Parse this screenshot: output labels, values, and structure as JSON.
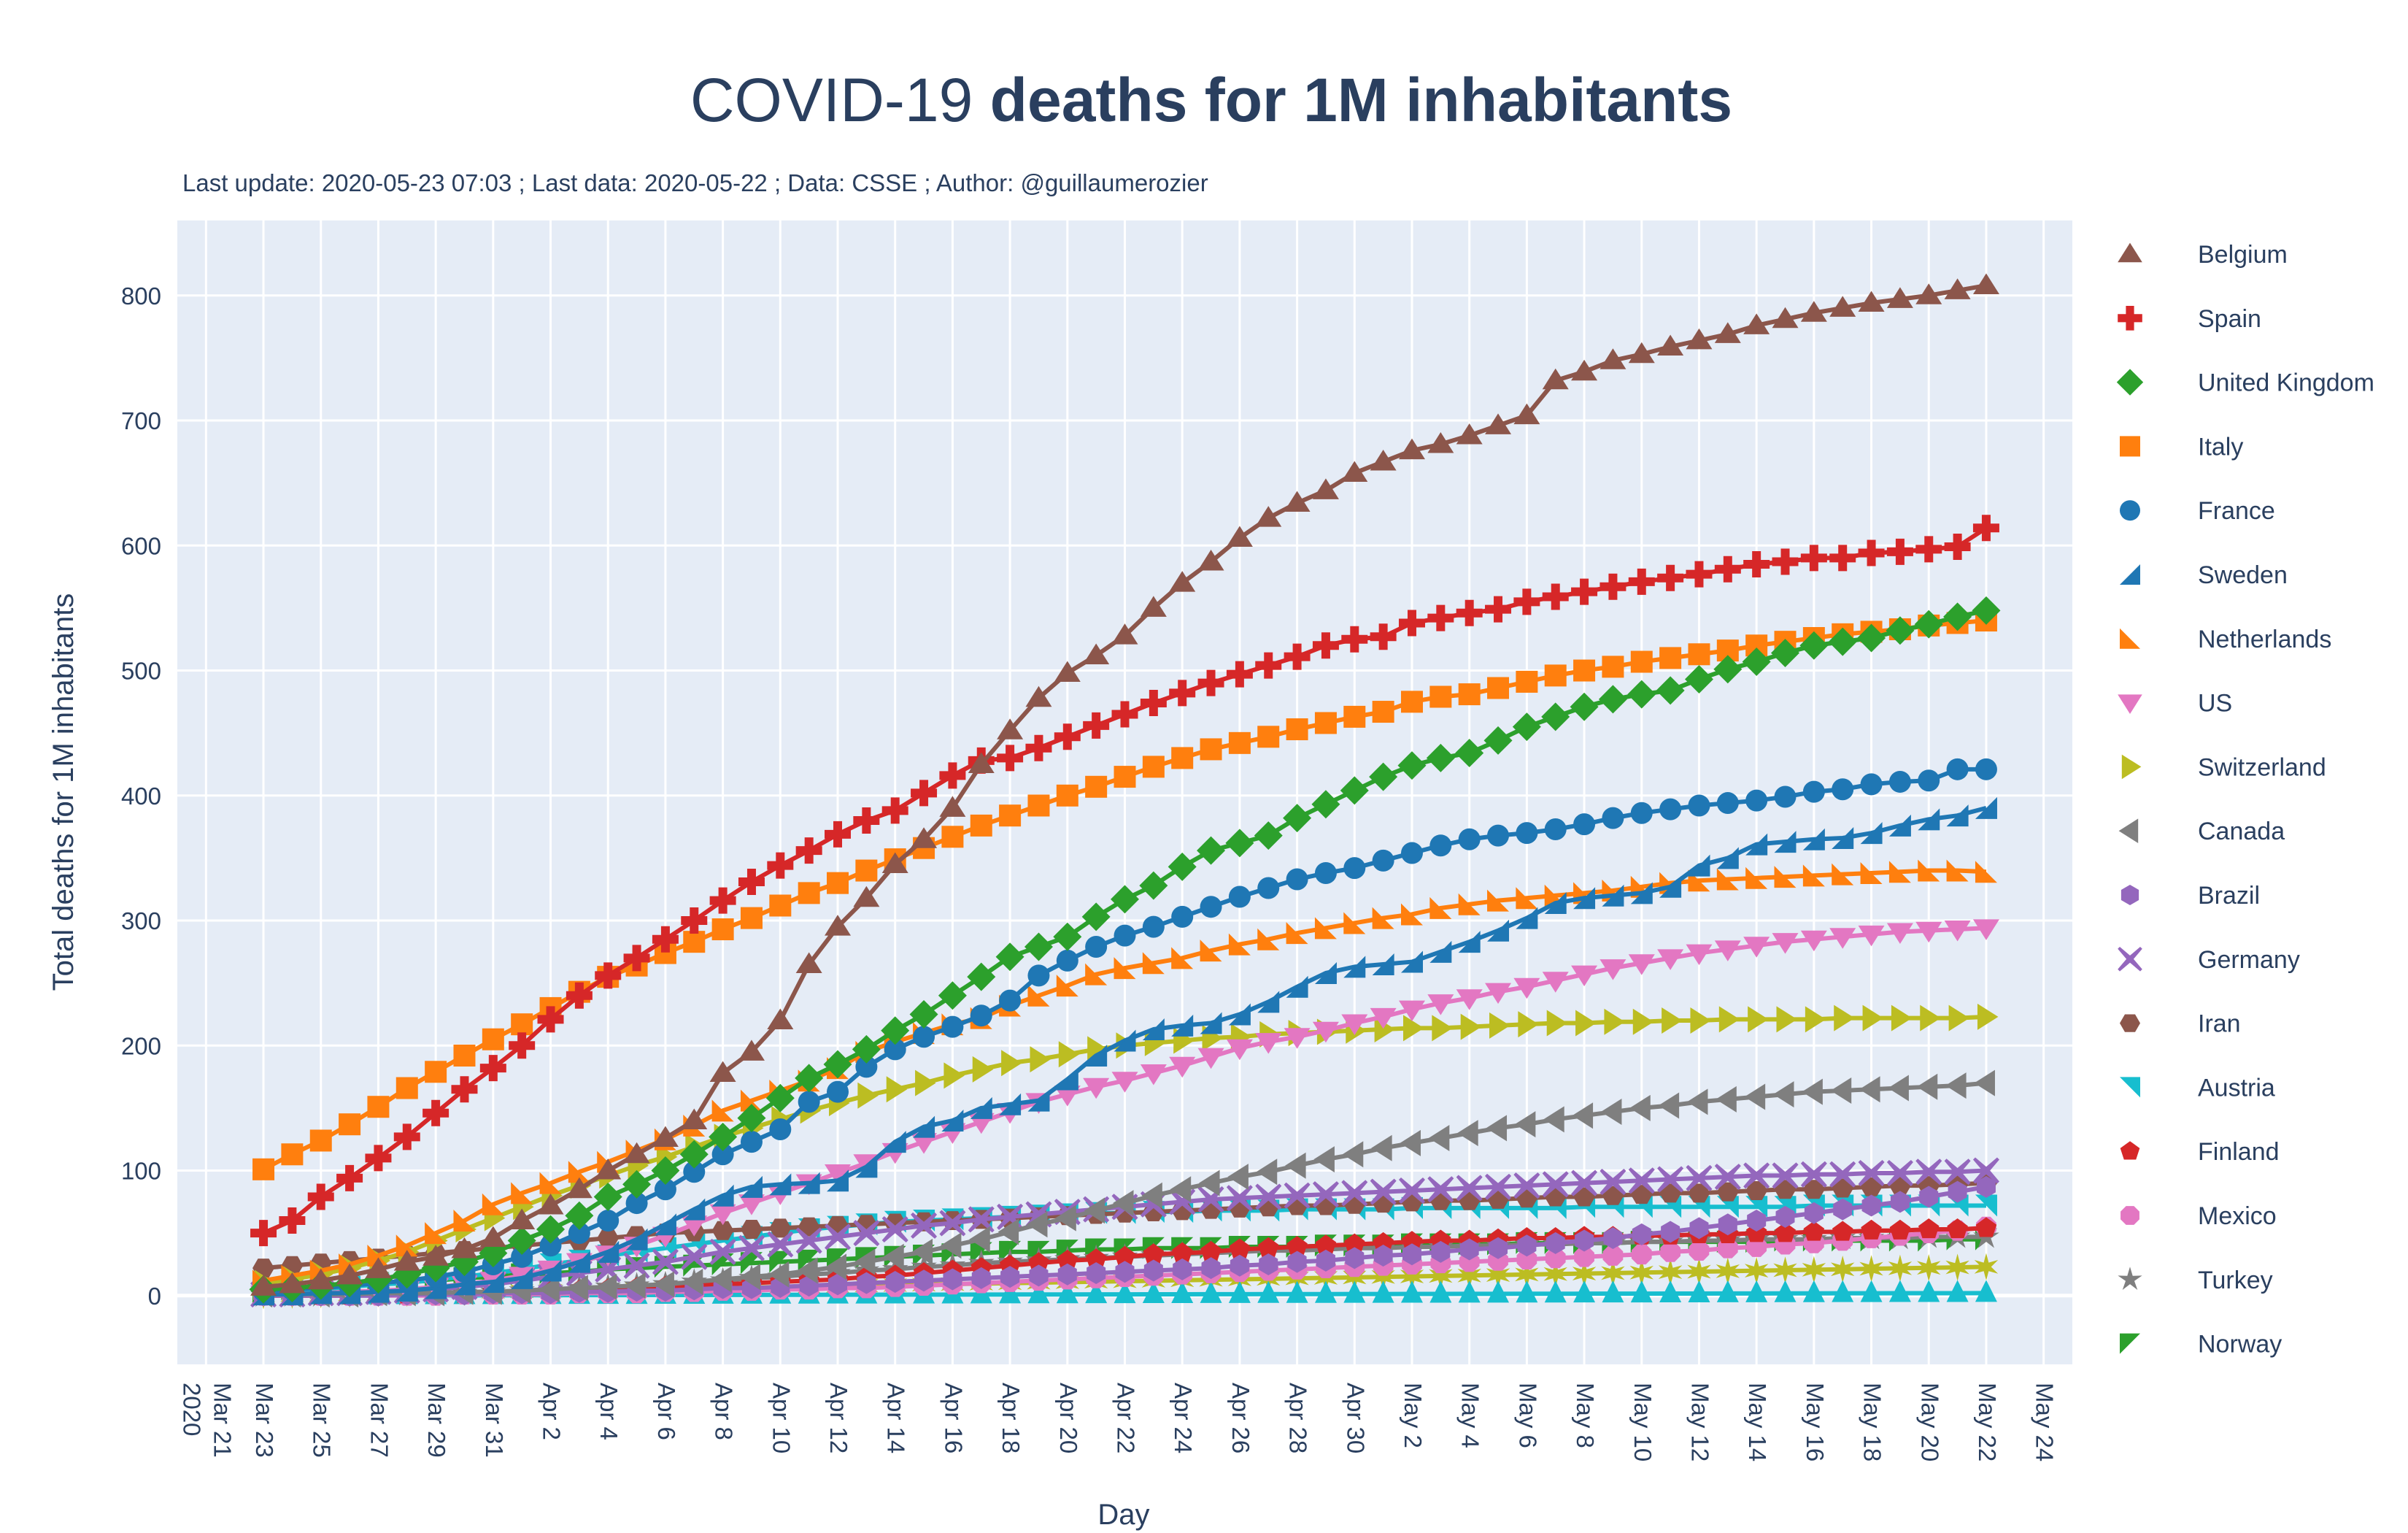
{
  "chart_data": {
    "type": "line",
    "title_regular": "COVID-19 ",
    "title_bold": "deaths for 1M inhabitants",
    "subtitle": "Last update: 2020-05-23 07:03 ; Last data: 2020-05-22 ; Data: CSSE ; Author: @guillaumerozier",
    "xlabel": "Day",
    "ylabel": "Total deaths  for 1M inhabitants",
    "x_start": "2020-03-23",
    "x_end": "2020-05-22",
    "x_step_days": 1,
    "xlim": [
      "2020-03-20",
      "2020-05-25"
    ],
    "ylim": [
      -55,
      860
    ],
    "yticks": [
      0,
      100,
      200,
      300,
      400,
      500,
      600,
      700,
      800
    ],
    "xtick_labels": [
      "Mar 21\n2020",
      "Mar 23",
      "Mar 25",
      "Mar 27",
      "Mar 29",
      "Mar 31",
      "Apr 2",
      "Apr 4",
      "Apr 6",
      "Apr 8",
      "Apr 10",
      "Apr 12",
      "Apr 14",
      "Apr 16",
      "Apr 18",
      "Apr 20",
      "Apr 22",
      "Apr 24",
      "Apr 26",
      "Apr 28",
      "Apr 30",
      "May 2",
      "May 4",
      "May 6",
      "May 8",
      "May 10",
      "May 12",
      "May 14",
      "May 16",
      "May 18",
      "May 20",
      "May 22",
      "May 24"
    ],
    "grid": true,
    "legend_position": "right",
    "background": "#e5ecf6",
    "series": [
      {
        "name": "Belgium",
        "color": "#8c564b",
        "marker": "triangle-up",
        "values": [
          7,
          9,
          12,
          16,
          21,
          27,
          31,
          37,
          46,
          60,
          72,
          85,
          100,
          113,
          126,
          140,
          178,
          195,
          220,
          265,
          295,
          318,
          345,
          365,
          390,
          425,
          452,
          478,
          498,
          512,
          528,
          550,
          570,
          587,
          606,
          622,
          634,
          644,
          658,
          667,
          676,
          681,
          688,
          696,
          704,
          732,
          739,
          748,
          753,
          759,
          764,
          769,
          776,
          781,
          786,
          790,
          794,
          797,
          800,
          804,
          808
        ]
      },
      {
        "name": "Spain",
        "color": "#d62728",
        "marker": "cross",
        "values": [
          50,
          60,
          79,
          94,
          110,
          127,
          146,
          165,
          182,
          200,
          221,
          240,
          256,
          270,
          285,
          300,
          316,
          331,
          344,
          356,
          369,
          380,
          388,
          402,
          416,
          428,
          430,
          438,
          447,
          456,
          465,
          474,
          482,
          490,
          497,
          504,
          511,
          520,
          525,
          527,
          538,
          542,
          546,
          549,
          555,
          559,
          563,
          567,
          571,
          574,
          577,
          581,
          585,
          587,
          590,
          590,
          594,
          595,
          597,
          599,
          614
        ]
      },
      {
        "name": "United Kingdom",
        "color": "#2ca02c",
        "marker": "diamond",
        "values": [
          5,
          6,
          8,
          10,
          13,
          17,
          22,
          27,
          34,
          44,
          53,
          64,
          79,
          89,
          100,
          113,
          127,
          142,
          158,
          174,
          185,
          197,
          212,
          225,
          240,
          255,
          271,
          279,
          287,
          303,
          317,
          328,
          343,
          356,
          362,
          368,
          382,
          393,
          404,
          415,
          424,
          430,
          434,
          444,
          455,
          463,
          471,
          477,
          481,
          484,
          493,
          501,
          507,
          514,
          520,
          523,
          526,
          532,
          537,
          543,
          548
        ]
      },
      {
        "name": "Italy",
        "color": "#ff7f0e",
        "marker": "square",
        "values": [
          101,
          113,
          124,
          137,
          151,
          166,
          179,
          192,
          205,
          217,
          230,
          243,
          255,
          264,
          274,
          283,
          293,
          302,
          312,
          322,
          330,
          340,
          349,
          358,
          367,
          376,
          384,
          392,
          400,
          407,
          415,
          423,
          430,
          437,
          442,
          447,
          453,
          458,
          463,
          467,
          475,
          479,
          481,
          486,
          491,
          496,
          500,
          503,
          507,
          510,
          513,
          516,
          520,
          523,
          526,
          529,
          531,
          533,
          536,
          538,
          540
        ]
      },
      {
        "name": "France",
        "color": "#1f77b4",
        "marker": "circle",
        "values": [
          4,
          5,
          6,
          8,
          10,
          12,
          15,
          19,
          25,
          31,
          40,
          50,
          60,
          74,
          85,
          99,
          113,
          123,
          133,
          155,
          163,
          183,
          197,
          207,
          215,
          224,
          236,
          256,
          268,
          279,
          288,
          295,
          303,
          311,
          319,
          326,
          333,
          338,
          342,
          348,
          354,
          360,
          365,
          368,
          370,
          373,
          377,
          382,
          386,
          389,
          392,
          394,
          396,
          399,
          403,
          405,
          409,
          411,
          412,
          421,
          421
        ]
      },
      {
        "name": "Sweden",
        "color": "#1f77b4",
        "marker": "triangle-ne",
        "values": [
          1,
          1,
          2,
          2,
          3,
          4,
          6,
          9,
          11,
          14,
          20,
          27,
          35,
          45,
          57,
          69,
          80,
          87,
          89,
          90,
          92,
          103,
          123,
          135,
          140,
          150,
          153,
          156,
          173,
          192,
          204,
          213,
          216,
          218,
          225,
          235,
          247,
          258,
          263,
          265,
          267,
          275,
          283,
          292,
          302,
          314,
          318,
          320,
          322,
          327,
          344,
          350,
          361,
          363,
          365,
          366,
          370,
          376,
          381,
          384,
          390
        ]
      },
      {
        "name": "Netherlands",
        "color": "#ff7f0e",
        "marker": "triangle-se",
        "values": [
          12,
          16,
          20,
          25,
          32,
          40,
          50,
          60,
          73,
          82,
          90,
          99,
          107,
          116,
          125,
          136,
          148,
          156,
          164,
          172,
          182,
          195,
          203,
          210,
          217,
          222,
          232,
          240,
          248,
          257,
          262,
          266,
          270,
          276,
          281,
          285,
          290,
          294,
          298,
          302,
          305,
          310,
          313,
          316,
          318,
          320,
          322,
          324,
          327,
          330,
          332,
          333,
          334,
          335,
          336,
          337,
          338,
          339,
          340,
          340,
          339
        ]
      },
      {
        "name": "US",
        "color": "#e377c2",
        "marker": "triangle-down",
        "values": [
          1,
          1,
          2,
          3,
          4,
          5,
          7,
          9,
          12,
          16,
          21,
          27,
          33,
          40,
          48,
          57,
          66,
          74,
          82,
          90,
          98,
          106,
          115,
          123,
          131,
          139,
          147,
          155,
          161,
          167,
          172,
          178,
          184,
          191,
          198,
          203,
          207,
          212,
          218,
          223,
          229,
          234,
          238,
          243,
          247,
          252,
          257,
          262,
          266,
          270,
          274,
          277,
          280,
          283,
          285,
          287,
          289,
          291,
          292,
          293,
          294
        ]
      },
      {
        "name": "Switzerland",
        "color": "#bcbd22",
        "marker": "triangle-right",
        "values": [
          10,
          13,
          17,
          22,
          28,
          35,
          44,
          53,
          62,
          71,
          80,
          88,
          96,
          104,
          111,
          119,
          127,
          134,
          141,
          148,
          154,
          160,
          165,
          170,
          176,
          181,
          186,
          189,
          193,
          197,
          200,
          202,
          204,
          206,
          207,
          209,
          210,
          211,
          212,
          213,
          214,
          214,
          215,
          216,
          217,
          218,
          218,
          219,
          219,
          220,
          220,
          221,
          221,
          221,
          221,
          222,
          222,
          222,
          222,
          222,
          223
        ]
      },
      {
        "name": "Canada",
        "color": "#7f7f7f",
        "marker": "triangle-left",
        "values": [
          1,
          1,
          1,
          1,
          2,
          2,
          2,
          3,
          3,
          4,
          5,
          6,
          7,
          8,
          9,
          11,
          13,
          15,
          17,
          20,
          23,
          27,
          31,
          35,
          40,
          45,
          51,
          57,
          62,
          68,
          74,
          80,
          85,
          90,
          95,
          99,
          104,
          109,
          113,
          118,
          122,
          126,
          130,
          134,
          137,
          141,
          144,
          147,
          150,
          152,
          155,
          157,
          159,
          161,
          163,
          164,
          165,
          166,
          167,
          168,
          170
        ]
      },
      {
        "name": "Brazil",
        "color": "#9467bd",
        "marker": "hexagon",
        "values": [
          0,
          0,
          0,
          0,
          0,
          1,
          1,
          1,
          2,
          2,
          2,
          3,
          3,
          4,
          4,
          5,
          6,
          6,
          7,
          8,
          9,
          10,
          11,
          12,
          13,
          14,
          15,
          16,
          17,
          18,
          19,
          20,
          21,
          22,
          24,
          25,
          27,
          28,
          30,
          32,
          33,
          35,
          37,
          38,
          40,
          42,
          44,
          46,
          49,
          51,
          54,
          57,
          60,
          63,
          66,
          69,
          72,
          75,
          79,
          83,
          87
        ]
      },
      {
        "name": "Germany",
        "color": "#9467bd",
        "marker": "x",
        "values": [
          1,
          1,
          2,
          2,
          3,
          4,
          5,
          7,
          9,
          12,
          15,
          18,
          21,
          24,
          27,
          31,
          35,
          38,
          41,
          44,
          47,
          50,
          53,
          56,
          58,
          61,
          63,
          65,
          67,
          69,
          71,
          73,
          75,
          77,
          78,
          79,
          80,
          81,
          82,
          83,
          84,
          85,
          86,
          87,
          88,
          89,
          90,
          91,
          92,
          93,
          94,
          95,
          96,
          96,
          97,
          97,
          98,
          98,
          99,
          99,
          100
        ]
      },
      {
        "name": "Iran",
        "color": "#8c564b",
        "marker": "hexagon2",
        "values": [
          22,
          24,
          26,
          28,
          30,
          32,
          34,
          36,
          38,
          40,
          42,
          44,
          46,
          48,
          50,
          51,
          52,
          53,
          54,
          55,
          56,
          57,
          58,
          59,
          60,
          61,
          62,
          63,
          64,
          65,
          66,
          67,
          68,
          69,
          70,
          71,
          72,
          72,
          73,
          74,
          75,
          76,
          76,
          77,
          78,
          79,
          79,
          80,
          81,
          82,
          82,
          83,
          84,
          85,
          85,
          86,
          87,
          88,
          88,
          89,
          90
        ]
      },
      {
        "name": "Austria",
        "color": "#17becf",
        "marker": "triangle-sw",
        "values": [
          3,
          4,
          5,
          7,
          9,
          10,
          13,
          15,
          18,
          21,
          25,
          28,
          32,
          35,
          38,
          41,
          44,
          47,
          50,
          53,
          55,
          57,
          59,
          60,
          61,
          62,
          63,
          64,
          65,
          66,
          66,
          67,
          67,
          68,
          68,
          68,
          69,
          69,
          69,
          69,
          70,
          70,
          70,
          70,
          70,
          70,
          71,
          71,
          71,
          71,
          71,
          71,
          71,
          71,
          72,
          72,
          72,
          72,
          72,
          72,
          72
        ]
      },
      {
        "name": "Finland",
        "color": "#d62728",
        "marker": "pentagon",
        "values": [
          0,
          0,
          0,
          0,
          1,
          1,
          2,
          2,
          3,
          3,
          4,
          4,
          5,
          6,
          7,
          8,
          9,
          10,
          11,
          12,
          13,
          15,
          16,
          18,
          20,
          22,
          24,
          26,
          28,
          29,
          31,
          33,
          34,
          35,
          37,
          38,
          39,
          40,
          41,
          42,
          43,
          44,
          44,
          45,
          46,
          46,
          47,
          47,
          48,
          48,
          49,
          49,
          50,
          50,
          51,
          51,
          52,
          52,
          53,
          53,
          54
        ]
      },
      {
        "name": "Mexico",
        "color": "#e377c2",
        "marker": "octagon",
        "values": [
          0,
          0,
          0,
          0,
          0,
          0,
          0,
          1,
          1,
          1,
          1,
          2,
          2,
          2,
          3,
          3,
          4,
          4,
          5,
          5,
          6,
          6,
          7,
          8,
          9,
          10,
          11,
          12,
          13,
          14,
          15,
          16,
          17,
          18,
          19,
          20,
          21,
          22,
          23,
          24,
          25,
          26,
          27,
          28,
          29,
          30,
          31,
          32,
          33,
          35,
          36,
          38,
          39,
          41,
          42,
          44,
          46,
          48,
          50,
          52,
          55
        ]
      },
      {
        "name": "Turkey",
        "color": "#7f7f7f",
        "marker": "star",
        "values": [
          0,
          0,
          0,
          1,
          1,
          1,
          2,
          2,
          3,
          4,
          5,
          6,
          7,
          8,
          9,
          11,
          12,
          14,
          15,
          17,
          18,
          20,
          21,
          23,
          24,
          26,
          27,
          28,
          29,
          30,
          31,
          32,
          33,
          34,
          35,
          36,
          36,
          37,
          38,
          38,
          39,
          39,
          40,
          40,
          41,
          41,
          42,
          42,
          43,
          43,
          44,
          44,
          45,
          45,
          45,
          46,
          46,
          46,
          47,
          47,
          47
        ]
      },
      {
        "name": "Norway",
        "color": "#2ca02c",
        "marker": "triangle-nw",
        "values": [
          3,
          5,
          6,
          8,
          10,
          11,
          12,
          14,
          15,
          17,
          18,
          19,
          21,
          22,
          23,
          24,
          25,
          26,
          27,
          28,
          29,
          30,
          31,
          32,
          33,
          34,
          35,
          35,
          36,
          37,
          37,
          38,
          38,
          38,
          39,
          39,
          39,
          40,
          40,
          40,
          41,
          41,
          41,
          41,
          42,
          42,
          42,
          42,
          43,
          43,
          43,
          43,
          43,
          44,
          44,
          44,
          44,
          44,
          44,
          45,
          45
        ]
      }
    ],
    "unlisted_series_visible": [
      {
        "color": "#bcbd22",
        "marker": "star-6",
        "values_range": [
          0,
          23
        ]
      },
      {
        "color": "#17becf",
        "marker": "triangle-up-cross",
        "values_range": [
          0,
          2
        ]
      }
    ]
  }
}
